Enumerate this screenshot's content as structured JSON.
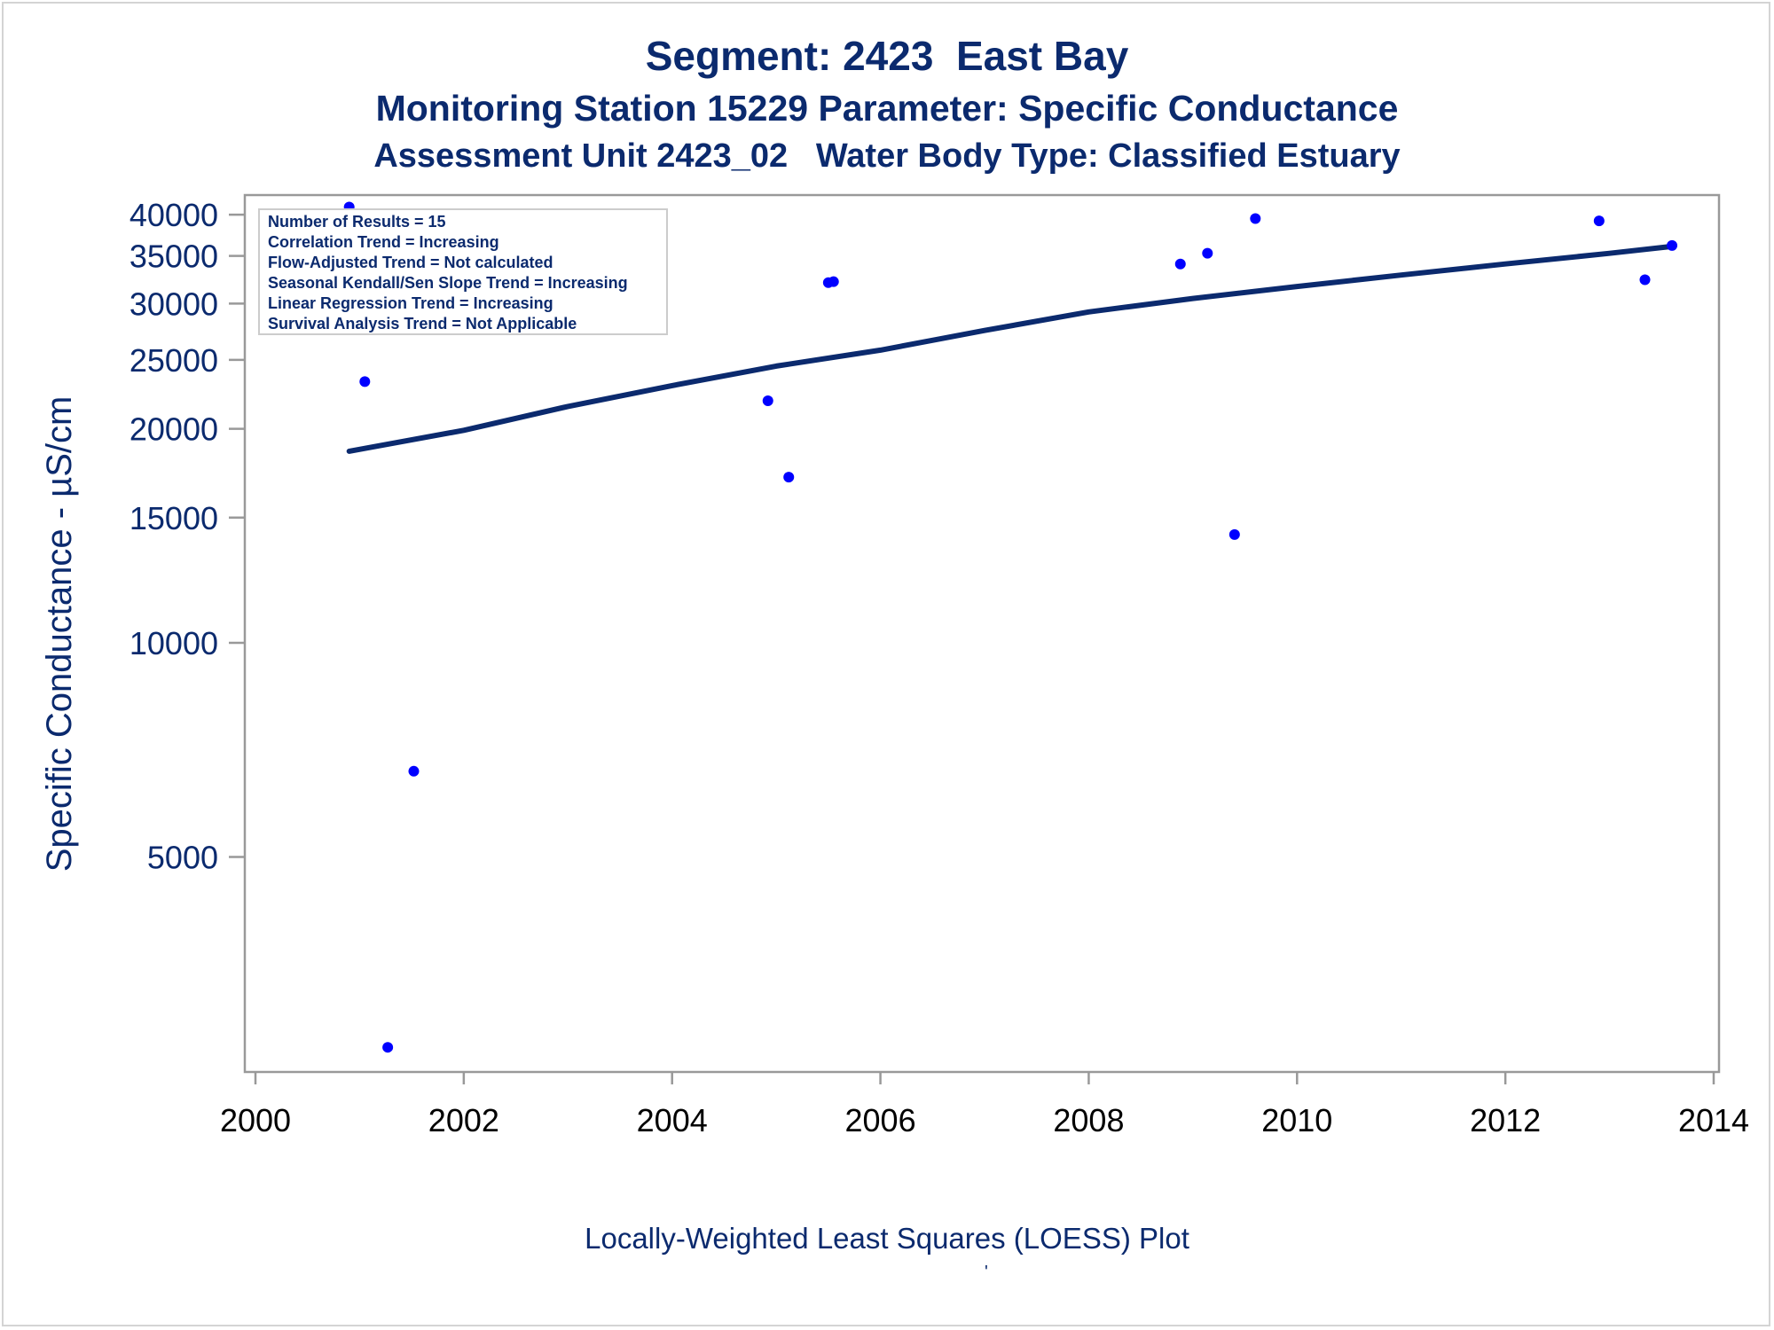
{
  "titles": {
    "line1": "Segment: 2423  East Bay",
    "line2": "Monitoring Station 15229 Parameter: Specific Conductance",
    "line3": "Assessment Unit 2423_02   Water Body Type: Classified Estuary"
  },
  "footnote": "Locally-Weighted Least Squares (LOESS) Plot",
  "footnote_mark": "'",
  "colors": {
    "text": "#0b2a6e",
    "axis": "#999999",
    "points": "#0000ff",
    "loess_line": "#0b2a6e",
    "background": "#ffffff"
  },
  "chart_data": {
    "type": "scatter",
    "ylabel": "Specific Conductance -  µS/cm",
    "xlabel": "",
    "x_scale": "linear",
    "y_scale": "log",
    "xlim": [
      2000,
      2014
    ],
    "ylim": [
      2500,
      42500
    ],
    "x_ticks": [
      2000,
      2002,
      2004,
      2006,
      2008,
      2010,
      2012,
      2014
    ],
    "y_ticks": [
      5000,
      10000,
      15000,
      20000,
      25000,
      30000,
      35000,
      40000
    ],
    "grid": false,
    "legend_position": "top-left",
    "stats_box": [
      "Number of Results = 15",
      "Correlation Trend = Increasing",
      "Flow-Adjusted Trend = Not calculated",
      "Seasonal Kendall/Sen Slope Trend = Increasing",
      "Linear Regression Trend = Increasing",
      "Survival Analysis Trend = Not Applicable"
    ],
    "series": [
      {
        "type": "scatter",
        "points": [
          {
            "x": 2000.9,
            "y": 41000
          },
          {
            "x": 2001.05,
            "y": 23300
          },
          {
            "x": 2001.27,
            "y": 2700
          },
          {
            "x": 2001.52,
            "y": 6600
          },
          {
            "x": 2004.92,
            "y": 21900
          },
          {
            "x": 2005.12,
            "y": 17100
          },
          {
            "x": 2005.5,
            "y": 32100
          },
          {
            "x": 2005.55,
            "y": 32200
          },
          {
            "x": 2008.88,
            "y": 34100
          },
          {
            "x": 2009.14,
            "y": 35300
          },
          {
            "x": 2009.4,
            "y": 14200
          },
          {
            "x": 2009.6,
            "y": 39500
          },
          {
            "x": 2012.9,
            "y": 39200
          },
          {
            "x": 2013.34,
            "y": 32400
          },
          {
            "x": 2013.6,
            "y": 36200
          }
        ]
      },
      {
        "type": "line",
        "points": [
          {
            "x": 2000.9,
            "y": 18600
          },
          {
            "x": 2002.0,
            "y": 19900
          },
          {
            "x": 2003.0,
            "y": 21500
          },
          {
            "x": 2004.0,
            "y": 23000
          },
          {
            "x": 2005.0,
            "y": 24500
          },
          {
            "x": 2006.0,
            "y": 25800
          },
          {
            "x": 2007.0,
            "y": 27500
          },
          {
            "x": 2008.0,
            "y": 29200
          },
          {
            "x": 2009.0,
            "y": 30500
          },
          {
            "x": 2010.0,
            "y": 31700
          },
          {
            "x": 2011.0,
            "y": 32900
          },
          {
            "x": 2012.0,
            "y": 34100
          },
          {
            "x": 2013.0,
            "y": 35300
          },
          {
            "x": 2013.6,
            "y": 36100
          }
        ]
      }
    ]
  }
}
